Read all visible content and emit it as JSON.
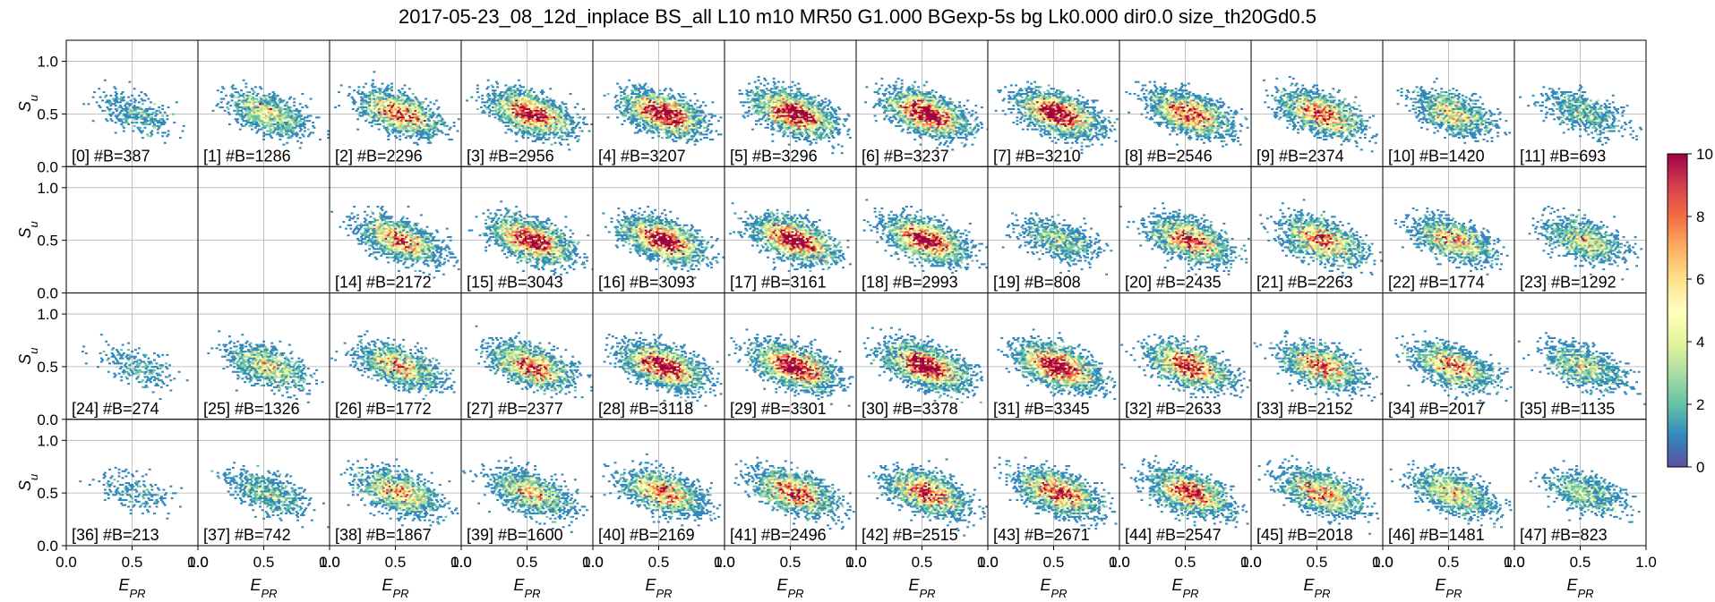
{
  "figure": {
    "title": "2017-05-23_08_12d_inplace BS_all L10 m10 MR50 G1.000 BGexp-5s bg Lk0.000 dir0.0 size_th20Gd0.5"
  },
  "chart_data": {
    "type": "heatmap",
    "subtype": "hexbin-grid",
    "title": "2017-05-23_08_12d_inplace BS_all L10 m10 MR50 G1.000 BGexp-5s bg Lk0.000 dir0.0 size_th20Gd0.5",
    "xlabel": "E_PR",
    "ylabel": "S_u",
    "xlim": [
      0,
      1
    ],
    "ylim": [
      0,
      1.2
    ],
    "xticks": [
      "0.0",
      "0.5",
      "1.0"
    ],
    "yticks": [
      "0.0",
      "0.5",
      "1.0"
    ],
    "grid": true,
    "rows": 4,
    "cols": 12,
    "colorbar": {
      "min": 0,
      "max": 10,
      "ticks": [
        "0",
        "2",
        "4",
        "6",
        "8",
        "10"
      ],
      "colormap": "Spectral_r"
    },
    "panels": [
      {
        "id": 0,
        "label": "[0] #B=387",
        "count": 387
      },
      {
        "id": 1,
        "label": "[1] #B=1286",
        "count": 1286
      },
      {
        "id": 2,
        "label": "[2] #B=2296",
        "count": 2296
      },
      {
        "id": 3,
        "label": "[3] #B=2956",
        "count": 2956
      },
      {
        "id": 4,
        "label": "[4] #B=3207",
        "count": 3207
      },
      {
        "id": 5,
        "label": "[5] #B=3296",
        "count": 3296
      },
      {
        "id": 6,
        "label": "[6] #B=3237",
        "count": 3237
      },
      {
        "id": 7,
        "label": "[7] #B=3210",
        "count": 3210
      },
      {
        "id": 8,
        "label": "[8] #B=2546",
        "count": 2546
      },
      {
        "id": 9,
        "label": "[9] #B=2374",
        "count": 2374
      },
      {
        "id": 10,
        "label": "[10] #B=1420",
        "count": 1420
      },
      {
        "id": 11,
        "label": "[11] #B=693",
        "count": 693
      },
      {
        "id": 12,
        "label": "",
        "count": 0
      },
      {
        "id": 13,
        "label": "",
        "count": 0
      },
      {
        "id": 14,
        "label": "[14] #B=2172",
        "count": 2172
      },
      {
        "id": 15,
        "label": "[15] #B=3043",
        "count": 3043
      },
      {
        "id": 16,
        "label": "[16] #B=3093",
        "count": 3093
      },
      {
        "id": 17,
        "label": "[17] #B=3161",
        "count": 3161
      },
      {
        "id": 18,
        "label": "[18] #B=2993",
        "count": 2993
      },
      {
        "id": 19,
        "label": "[19] #B=808",
        "count": 808
      },
      {
        "id": 20,
        "label": "[20] #B=2435",
        "count": 2435
      },
      {
        "id": 21,
        "label": "[21] #B=2263",
        "count": 2263
      },
      {
        "id": 22,
        "label": "[22] #B=1774",
        "count": 1774
      },
      {
        "id": 23,
        "label": "[23] #B=1292",
        "count": 1292
      },
      {
        "id": 24,
        "label": "[24] #B=274",
        "count": 274
      },
      {
        "id": 25,
        "label": "[25] #B=1326",
        "count": 1326
      },
      {
        "id": 26,
        "label": "[26] #B=1772",
        "count": 1772
      },
      {
        "id": 27,
        "label": "[27] #B=2377",
        "count": 2377
      },
      {
        "id": 28,
        "label": "[28] #B=3118",
        "count": 3118
      },
      {
        "id": 29,
        "label": "[29] #B=3301",
        "count": 3301
      },
      {
        "id": 30,
        "label": "[30] #B=3378",
        "count": 3378
      },
      {
        "id": 31,
        "label": "[31] #B=3345",
        "count": 3345
      },
      {
        "id": 32,
        "label": "[32] #B=2633",
        "count": 2633
      },
      {
        "id": 33,
        "label": "[33] #B=2152",
        "count": 2152
      },
      {
        "id": 34,
        "label": "[34] #B=2017",
        "count": 2017
      },
      {
        "id": 35,
        "label": "[35] #B=1135",
        "count": 1135
      },
      {
        "id": 36,
        "label": "[36] #B=213",
        "count": 213
      },
      {
        "id": 37,
        "label": "[37] #B=742",
        "count": 742
      },
      {
        "id": 38,
        "label": "[38] #B=1867",
        "count": 1867
      },
      {
        "id": 39,
        "label": "[39] #B=1600",
        "count": 1600
      },
      {
        "id": 40,
        "label": "[40] #B=2169",
        "count": 2169
      },
      {
        "id": 41,
        "label": "[41] #B=2496",
        "count": 2496
      },
      {
        "id": 42,
        "label": "[42] #B=2515",
        "count": 2515
      },
      {
        "id": 43,
        "label": "[43] #B=2671",
        "count": 2671
      },
      {
        "id": 44,
        "label": "[44] #B=2547",
        "count": 2547
      },
      {
        "id": 45,
        "label": "[45] #B=2018",
        "count": 2018
      },
      {
        "id": 46,
        "label": "[46] #B=1481",
        "count": 1481
      },
      {
        "id": 47,
        "label": "[47] #B=823",
        "count": 823
      }
    ]
  }
}
